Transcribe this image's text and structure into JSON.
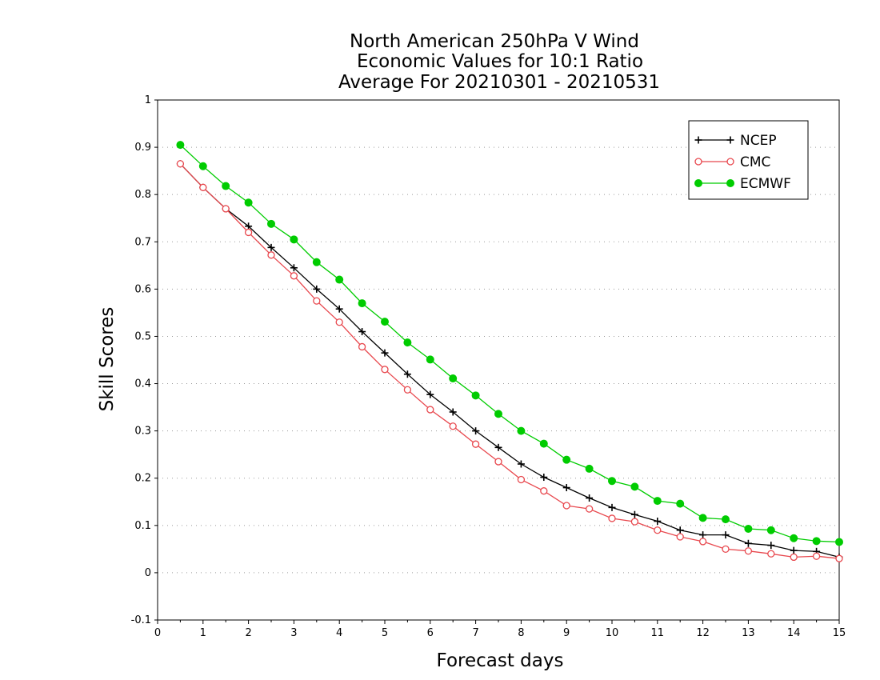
{
  "chart_data": {
    "type": "line",
    "title_lines": [
      "North American 250hPa V Wind",
      "Economic Values for 10:1 Ratio",
      "Average For 20210301 - 20210531"
    ],
    "xlabel": "Forecast days",
    "ylabel": "Skill Scores",
    "xlim": [
      0,
      15
    ],
    "ylim": [
      -0.1,
      1
    ],
    "x_ticks": [
      "0",
      "1",
      "2",
      "3",
      "4",
      "5",
      "6",
      "7",
      "8",
      "9",
      "10",
      "11",
      "12",
      "13",
      "14",
      "15"
    ],
    "y_ticks": [
      "1",
      "0.9",
      "0.8",
      "0.7",
      "0.6",
      "0.5",
      "0.4",
      "0.3",
      "0.2",
      "0.1",
      "0",
      "-0.1"
    ],
    "grid": true,
    "legend_position": "top-right",
    "x": [
      0.5,
      1,
      1.5,
      2,
      2.5,
      3,
      3.5,
      4,
      4.5,
      5,
      5.5,
      6,
      6.5,
      7,
      7.5,
      8,
      8.5,
      9,
      9.5,
      10,
      10.5,
      11,
      11.5,
      12,
      12.5,
      13,
      13.5,
      14,
      14.5,
      15
    ],
    "series": [
      {
        "name": "NCEP",
        "color": "#000000",
        "marker": "plus",
        "values": [
          0.865,
          0.815,
          0.77,
          0.733,
          0.688,
          0.645,
          0.6,
          0.558,
          0.51,
          0.465,
          0.42,
          0.377,
          0.34,
          0.3,
          0.265,
          0.23,
          0.202,
          0.18,
          0.158,
          0.138,
          0.123,
          0.109,
          0.09,
          0.08,
          0.08,
          0.062,
          0.058,
          0.047,
          0.045,
          0.033
        ]
      },
      {
        "name": "CMC",
        "color": "#e8484e",
        "marker": "open-circle",
        "values": [
          0.865,
          0.815,
          0.77,
          0.72,
          0.672,
          0.628,
          0.575,
          0.53,
          0.478,
          0.43,
          0.387,
          0.345,
          0.31,
          0.272,
          0.235,
          0.197,
          0.173,
          0.142,
          0.135,
          0.115,
          0.108,
          0.09,
          0.076,
          0.066,
          0.05,
          0.046,
          0.04,
          0.033,
          0.035,
          0.03
        ]
      },
      {
        "name": "ECMWF",
        "color": "#00cc00",
        "marker": "filled-circle",
        "values": [
          0.905,
          0.86,
          0.818,
          0.783,
          0.738,
          0.705,
          0.657,
          0.62,
          0.57,
          0.531,
          0.487,
          0.451,
          0.411,
          0.375,
          0.336,
          0.3,
          0.273,
          0.239,
          0.22,
          0.194,
          0.182,
          0.152,
          0.146,
          0.116,
          0.113,
          0.093,
          0.09,
          0.073,
          0.067,
          0.065
        ]
      }
    ]
  }
}
